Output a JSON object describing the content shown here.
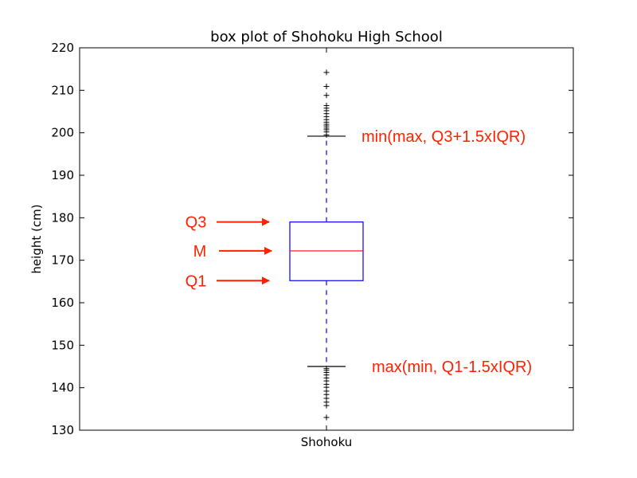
{
  "chart_data": {
    "type": "box",
    "title": "box plot of Shohoku High School",
    "ylabel": "height (cm)",
    "xlabel": "",
    "categories": [
      "Shohoku"
    ],
    "ylim": [
      130,
      220
    ],
    "yticks": [
      130,
      140,
      150,
      160,
      170,
      180,
      190,
      200,
      210,
      220
    ],
    "box": {
      "q1": 165.2,
      "median": 172.2,
      "q3": 179.0,
      "whisker_low": 145.0,
      "whisker_high": 199.2
    },
    "outliers_high": [
      199.5,
      200.2,
      200.7,
      201.1,
      201.6,
      202.0,
      202.5,
      203.1,
      203.8,
      204.5,
      205.2,
      205.8,
      206.4,
      208.8,
      210.9,
      214.2
    ],
    "outliers_low": [
      133.0,
      135.8,
      136.6,
      137.5,
      138.4,
      139.2,
      140.1,
      140.8,
      141.6,
      142.3,
      143.0,
      143.6,
      144.1,
      144.5
    ],
    "annotations": [
      {
        "text": "Q3",
        "target": "q3"
      },
      {
        "text": "M",
        "target": "median"
      },
      {
        "text": "Q1",
        "target": "q1"
      },
      {
        "text": "min(max, Q3+1.5xIQR)",
        "target": "whisker_high"
      },
      {
        "text": "max(min, Q1-1.5xIQR)",
        "target": "whisker_low"
      }
    ],
    "colors": {
      "box": "#0000ff",
      "median": "#ff0000",
      "whisker": "#0000ff",
      "caps": "#000000",
      "outliers": "#000000",
      "annotation": "#ff2200"
    },
    "grid": false
  }
}
